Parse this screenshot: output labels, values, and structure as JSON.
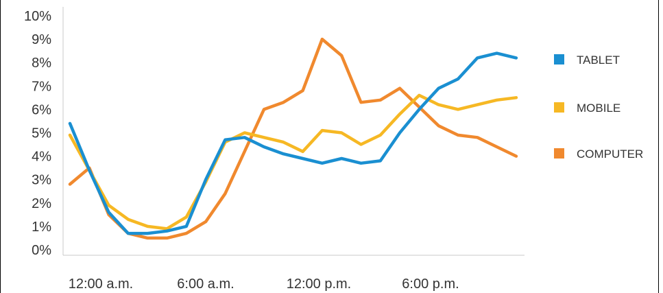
{
  "chart_data": {
    "type": "line",
    "ylim": [
      0,
      10
    ],
    "y_ticks": [
      0,
      1,
      2,
      3,
      4,
      5,
      6,
      7,
      8,
      9,
      10
    ],
    "y_tick_labels": [
      "0%",
      "1%",
      "2%",
      "3%",
      "4%",
      "5%",
      "6%",
      "7%",
      "8%",
      "9%",
      "10%"
    ],
    "x_ticks": [
      0,
      6,
      12,
      18
    ],
    "x_tick_labels": [
      "12:00 a.m.",
      "6:00 a.m.",
      "12:00 p.m.",
      "6:00 p.m."
    ],
    "x": [
      0,
      1,
      2,
      3,
      4,
      5,
      6,
      7,
      8,
      9,
      10,
      11,
      12,
      13,
      14,
      15,
      16,
      17,
      18,
      19,
      20,
      21,
      22,
      23
    ],
    "legend_position": "right",
    "grid": false,
    "series": [
      {
        "name": "TABLET",
        "color": "#1a8fd1",
        "values": [
          5.4,
          3.4,
          1.6,
          0.7,
          0.7,
          0.8,
          1.0,
          3.0,
          4.7,
          4.8,
          4.4,
          4.1,
          3.9,
          3.7,
          3.9,
          3.7,
          3.8,
          5.0,
          6.0,
          6.9,
          7.3,
          8.2,
          8.4,
          8.2
        ]
      },
      {
        "name": "MOBILE",
        "color": "#f6b824",
        "values": [
          4.9,
          3.4,
          1.9,
          1.3,
          1.0,
          0.9,
          1.4,
          2.9,
          4.6,
          5.0,
          4.8,
          4.6,
          4.2,
          5.1,
          5.0,
          4.5,
          4.9,
          5.8,
          6.6,
          6.2,
          6.0,
          6.2,
          6.4,
          6.5
        ]
      },
      {
        "name": "COMPUTER",
        "color": "#f0892e",
        "values": [
          2.8,
          3.5,
          1.5,
          0.7,
          0.5,
          0.5,
          0.7,
          1.2,
          2.4,
          4.2,
          6.0,
          6.3,
          6.8,
          9.0,
          8.3,
          6.3,
          6.4,
          6.9,
          6.1,
          5.3,
          4.9,
          4.8,
          4.4,
          4.0
        ]
      }
    ]
  }
}
